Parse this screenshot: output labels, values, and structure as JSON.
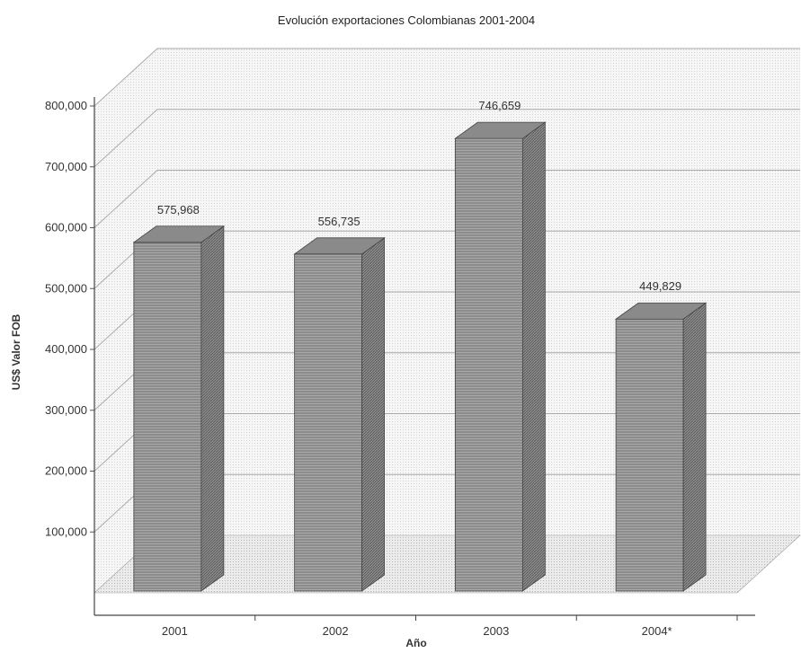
{
  "chart_data": {
    "type": "bar",
    "title": "Evolución exportaciones Colombianas 2001-2004",
    "xlabel": "Año",
    "ylabel": "US$ Valor FOB",
    "categories": [
      "2001",
      "2002",
      "2003",
      "2004*"
    ],
    "series": [
      {
        "values": [
          575968,
          556735,
          746659,
          449829
        ]
      }
    ],
    "value_labels": [
      "575,968",
      "556,735",
      "746,659",
      "449,829"
    ],
    "yticks": [
      "100,000",
      "200,000",
      "300,000",
      "400,000",
      "500,000",
      "600,000",
      "700,000",
      "800,000"
    ],
    "ylim": [
      0,
      800000
    ],
    "grid": true,
    "three_d": true,
    "colors": {
      "bar_front": "#9a9a9a",
      "bar_side": "#7a7a7a",
      "bar_top": "#bcbcbc",
      "wall": "#f0f0f0",
      "floor": "#e2e2e2",
      "grid": "#b0b0b0"
    }
  }
}
